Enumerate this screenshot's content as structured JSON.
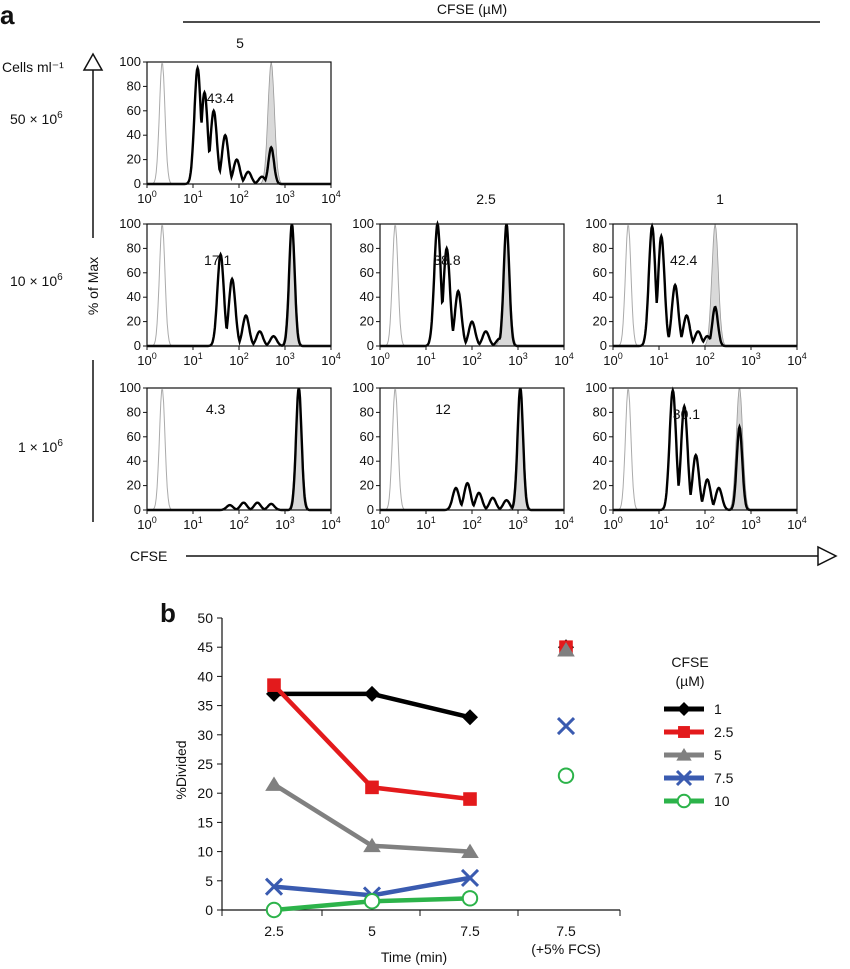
{
  "panel_a": {
    "label": "a",
    "cfse_header": "CFSE (µM)",
    "concentrations": [
      "5",
      "2.5",
      "1"
    ],
    "density_axis_label": "Cells ml⁻¹",
    "densities": [
      "50 × 10",
      "10 × 10",
      "1 × 10"
    ],
    "density_exponent": "6",
    "y_axis_label": "% of Max",
    "x_axis_label": "CFSE",
    "histogram_y_ticks": [
      "0",
      "20",
      "40",
      "60",
      "80",
      "100"
    ],
    "histogram_x_tick_base": "10",
    "histogram_x_tick_exps": [
      "0",
      "1",
      "2",
      "3",
      "4"
    ],
    "histograms": [
      {
        "density": "50 × 10^6",
        "cfse_uM": "5",
        "percent_divided": "43.4"
      },
      {
        "density": "10 × 10^6",
        "cfse_uM": "5",
        "percent_divided": "17.1"
      },
      {
        "density": "10 × 10^6",
        "cfse_uM": "2.5",
        "percent_divided": "38.8"
      },
      {
        "density": "10 × 10^6",
        "cfse_uM": "1",
        "percent_divided": "42.4"
      },
      {
        "density": "1 × 10^6",
        "cfse_uM": "5",
        "percent_divided": "4.3"
      },
      {
        "density": "1 × 10^6",
        "cfse_uM": "2.5",
        "percent_divided": "12"
      },
      {
        "density": "1 × 10^6",
        "cfse_uM": "1",
        "percent_divided": "30.1"
      }
    ]
  },
  "panel_b": {
    "label": "b"
  },
  "colors": {
    "series_1": "#000000",
    "series_2_5": "#e31a1c",
    "series_5": "#808080",
    "series_7_5": "#3a5bb0",
    "series_10": "#2cb34a",
    "histogram_fill": "#d9d9d9"
  },
  "chart_data": {
    "type": "line",
    "x_categories": [
      "2.5",
      "5",
      "7.5",
      "7.5\n(+5% FCS)"
    ],
    "x_category_lines": [
      [
        "2.5"
      ],
      [
        "5"
      ],
      [
        "7.5"
      ],
      [
        "7.5",
        "(+5% FCS)"
      ]
    ],
    "xlabel": "Time (min)",
    "ylabel": "%Divided",
    "ylim": [
      0,
      50
    ],
    "y_ticks": [
      "0",
      "5",
      "10",
      "15",
      "20",
      "25",
      "30",
      "35",
      "40",
      "45",
      "50"
    ],
    "legend_title": [
      "CFSE",
      "(µM)"
    ],
    "legend_position": "right",
    "series": [
      {
        "name": "1",
        "marker": "diamond",
        "time_values": [
          37,
          37,
          33
        ],
        "fcs_value": 45,
        "color": "#000000"
      },
      {
        "name": "2.5",
        "marker": "square",
        "time_values": [
          38.5,
          21,
          19
        ],
        "fcs_value": 45,
        "color": "#e31a1c"
      },
      {
        "name": "5",
        "marker": "triangle",
        "time_values": [
          21.5,
          11,
          10
        ],
        "fcs_value": 44.5,
        "color": "#808080"
      },
      {
        "name": "7.5",
        "marker": "x",
        "time_values": [
          4,
          2.5,
          5.5
        ],
        "fcs_value": 31.5,
        "color": "#3a5bb0"
      },
      {
        "name": "10",
        "marker": "circle",
        "time_values": [
          0,
          1.5,
          2
        ],
        "fcs_value": 23,
        "color": "#2cb34a"
      }
    ]
  }
}
